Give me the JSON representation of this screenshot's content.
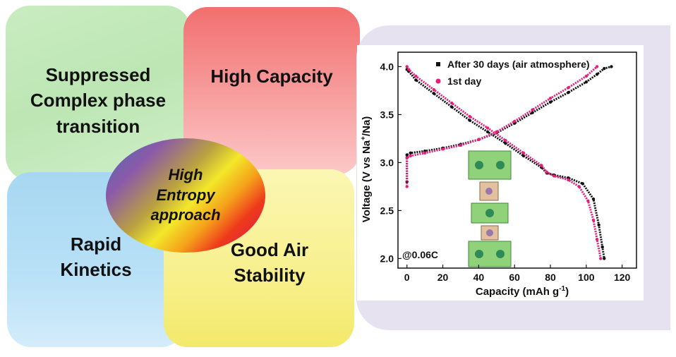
{
  "concept": {
    "center_label": "High\nEntropy\napproach",
    "panels": [
      {
        "label": "Suppressed\nComplex phase\ntransition",
        "color": "#c9ecc0"
      },
      {
        "label": "High Capacity",
        "color": "#f26f6f"
      },
      {
        "label": "Rapid\nKinetics",
        "color": "#a7d7f2"
      },
      {
        "label": "Good Air\nStability",
        "color": "#f8f08c"
      }
    ]
  },
  "chart_data": {
    "type": "line",
    "xlabel_main": "Capacity (mAh g",
    "xlabel_sup": "-1",
    "xlabel_end": ")",
    "ylabel_main": "Voltage (V vs Na",
    "ylabel_sup": "+",
    "ylabel_end": "/Na)",
    "annotation": "@0.06C",
    "xlim": [
      -5,
      128
    ],
    "ylim": [
      1.9,
      4.15
    ],
    "x_ticks": [
      0,
      20,
      40,
      60,
      80,
      100,
      120
    ],
    "y_ticks": [
      "2.0",
      "2.5",
      "3.0",
      "3.5",
      "4.0"
    ],
    "y_tick_values": [
      2.0,
      2.5,
      3.0,
      3.5,
      4.0
    ],
    "legend_position": "top-right",
    "series": [
      {
        "name": "After 30 days (air atmosphere)",
        "color": "#111111",
        "charge": {
          "x": [
            0,
            0,
            2,
            10,
            20,
            30,
            40,
            50,
            60,
            70,
            80,
            90,
            100,
            106,
            110,
            114
          ],
          "y": [
            2.8,
            3.08,
            3.1,
            3.12,
            3.15,
            3.19,
            3.24,
            3.31,
            3.41,
            3.52,
            3.63,
            3.73,
            3.84,
            3.92,
            3.98,
            4.0
          ]
        },
        "discharge": {
          "x": [
            0,
            1,
            5,
            15,
            25,
            35,
            45,
            55,
            65,
            75,
            78,
            82,
            90,
            98,
            104,
            107,
            109,
            110
          ],
          "y": [
            3.97,
            3.95,
            3.86,
            3.72,
            3.58,
            3.44,
            3.32,
            3.2,
            3.07,
            2.95,
            2.89,
            2.87,
            2.84,
            2.78,
            2.62,
            2.35,
            2.12,
            2.0
          ]
        }
      },
      {
        "name": "1st day",
        "color": "#e61e7a",
        "charge": {
          "x": [
            0,
            0,
            2,
            10,
            20,
            30,
            40,
            50,
            60,
            70,
            80,
            90,
            100,
            106
          ],
          "y": [
            2.75,
            3.05,
            3.07,
            3.1,
            3.14,
            3.18,
            3.24,
            3.32,
            3.43,
            3.55,
            3.67,
            3.78,
            3.9,
            4.0
          ]
        },
        "discharge": {
          "x": [
            0,
            1,
            5,
            15,
            25,
            35,
            45,
            55,
            65,
            75,
            78,
            82,
            90,
            96,
            101,
            104,
            106,
            108
          ],
          "y": [
            4.0,
            3.97,
            3.9,
            3.76,
            3.62,
            3.48,
            3.36,
            3.23,
            3.1,
            2.97,
            2.9,
            2.86,
            2.82,
            2.75,
            2.6,
            2.4,
            2.2,
            2.0
          ]
        }
      }
    ]
  }
}
